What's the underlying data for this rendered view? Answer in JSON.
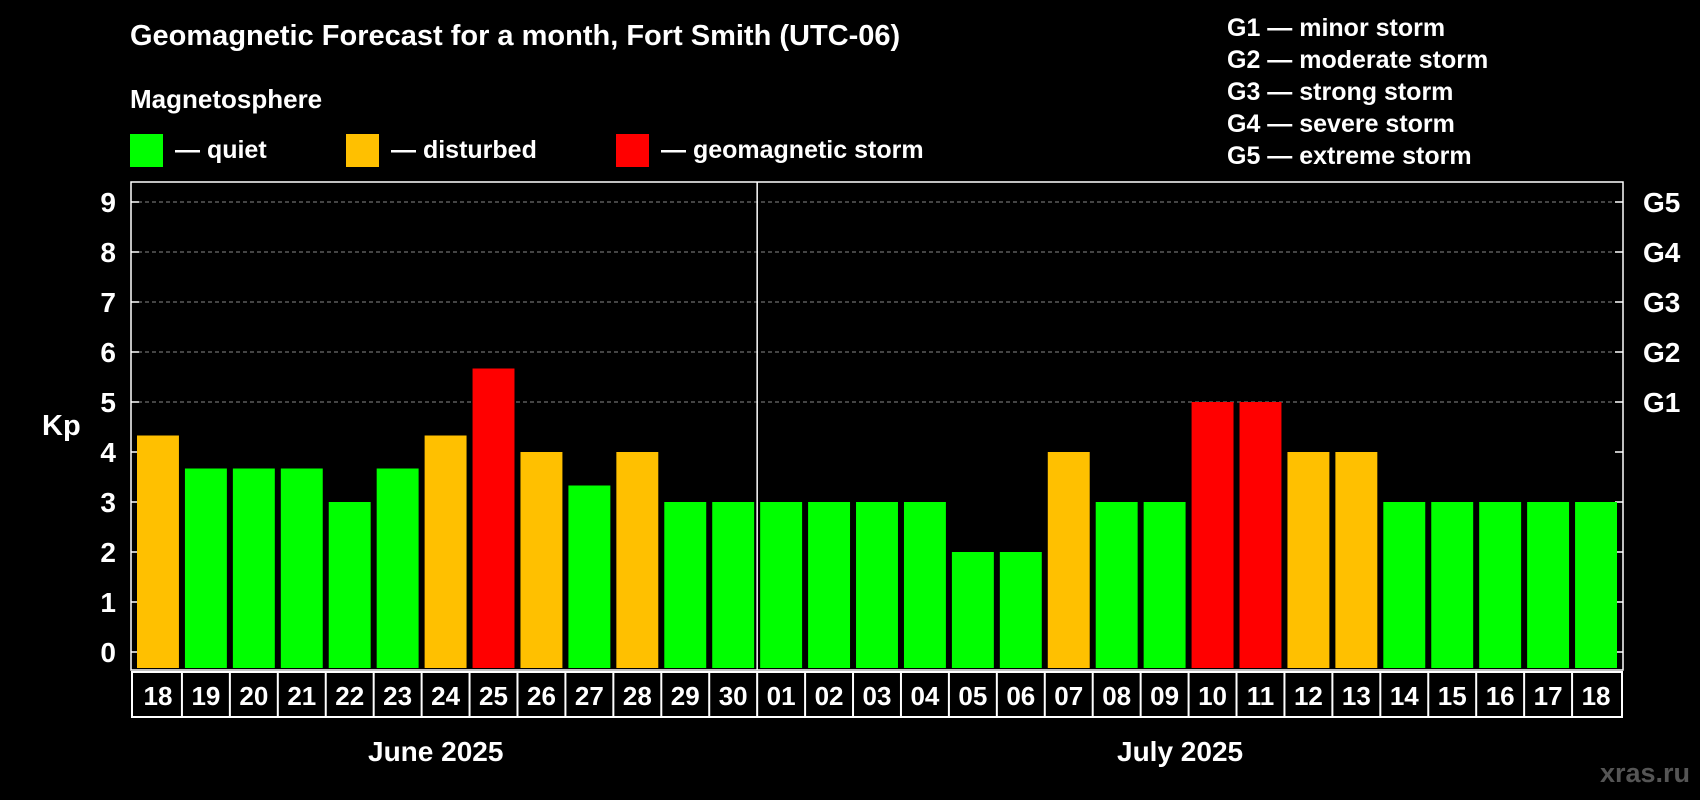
{
  "title": "Geomagnetic Forecast for a month, Fort Smith (UTC-06)",
  "magnetosphere_label": "Magnetosphere",
  "legend": [
    {
      "label": "— quiet",
      "color": "#00ff00"
    },
    {
      "label": "— disturbed",
      "color": "#ffc000"
    },
    {
      "label": "— geomagnetic storm",
      "color": "#ff0000"
    }
  ],
  "g_scale": [
    "G1 — minor storm",
    "G2 — moderate storm",
    "G3 — strong storm",
    "G4 — severe storm",
    "G5 — extreme storm"
  ],
  "months": [
    "June 2025",
    "July 2025"
  ],
  "watermark": "xras.ru",
  "chart_data": {
    "type": "bar",
    "ylabel": "Kp",
    "ylim": [
      0,
      9
    ],
    "yticks": [
      "0",
      "1",
      "2",
      "3",
      "4",
      "5",
      "6",
      "7",
      "8",
      "9"
    ],
    "right_ticks": [
      {
        "kp": 5,
        "label": "G1"
      },
      {
        "kp": 6,
        "label": "G2"
      },
      {
        "kp": 7,
        "label": "G3"
      },
      {
        "kp": 8,
        "label": "G4"
      },
      {
        "kp": 9,
        "label": "G5"
      }
    ],
    "grid": "dashed horizontal at Kp 5-9",
    "categories": [
      "18",
      "19",
      "20",
      "21",
      "22",
      "23",
      "24",
      "25",
      "26",
      "27",
      "28",
      "29",
      "30",
      "01",
      "02",
      "03",
      "04",
      "05",
      "06",
      "07",
      "08",
      "09",
      "10",
      "11",
      "12",
      "13",
      "14",
      "15",
      "16",
      "17",
      "18"
    ],
    "values": [
      4.33,
      3.67,
      3.67,
      3.67,
      3,
      3.67,
      4.33,
      5.67,
      4,
      3.33,
      4,
      3,
      3,
      3,
      3,
      3,
      3,
      2,
      2,
      4,
      3,
      3,
      5,
      5,
      4,
      4,
      3,
      3,
      3,
      3,
      3
    ],
    "status": [
      "disturbed",
      "quiet",
      "quiet",
      "quiet",
      "quiet",
      "quiet",
      "disturbed",
      "storm",
      "disturbed",
      "quiet",
      "disturbed",
      "quiet",
      "quiet",
      "quiet",
      "quiet",
      "quiet",
      "quiet",
      "quiet",
      "quiet",
      "disturbed",
      "quiet",
      "quiet",
      "storm",
      "storm",
      "disturbed",
      "disturbed",
      "quiet",
      "quiet",
      "quiet",
      "quiet",
      "quiet"
    ],
    "colors": {
      "quiet": "#00ff00",
      "disturbed": "#ffc000",
      "storm": "#ff0000"
    },
    "month_split_index": 13
  }
}
